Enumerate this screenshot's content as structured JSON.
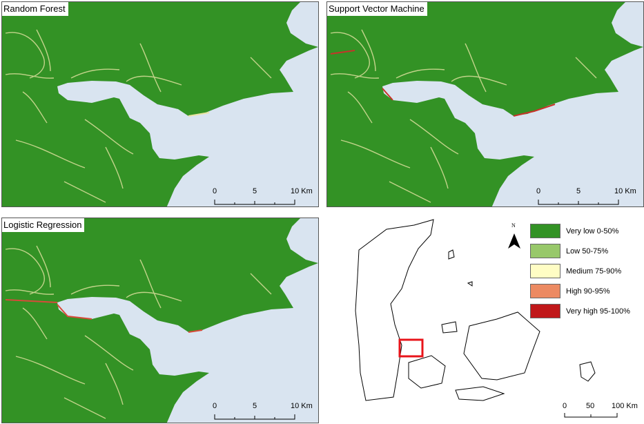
{
  "panels": [
    {
      "title": "Random Forest",
      "hotspot_color": "#e9e3a0"
    },
    {
      "title": "Support Vector Machine",
      "hotspot_color": "#c8322a"
    },
    {
      "title": "Logistic Regression",
      "hotspot_color": "#d84a3a"
    }
  ],
  "panel_scale": {
    "labels": [
      "0",
      "5",
      "10 Km"
    ]
  },
  "overview_scale": {
    "labels": [
      "0",
      "50",
      "100 Km"
    ]
  },
  "north_arrow": {
    "label": "N"
  },
  "legend": [
    {
      "label": "Very low 0-50%",
      "color": "#339225"
    },
    {
      "label": "Low 50-75%",
      "color": "#98c86a"
    },
    {
      "label": "Medium 75-90%",
      "color": "#fffdc4"
    },
    {
      "label": "High 90-95%",
      "color": "#ec8a62"
    },
    {
      "label": "Very high 95-100%",
      "color": "#c0181a"
    }
  ],
  "colors": {
    "water": "#d9e4f0",
    "land": "#339225",
    "study_area_box": "#e8141a"
  }
}
